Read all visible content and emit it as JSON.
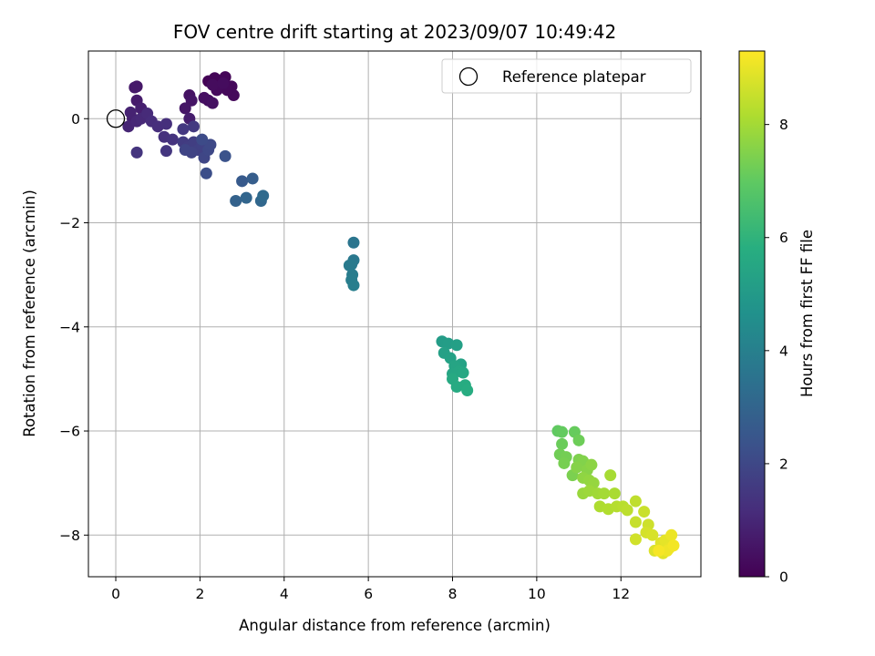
{
  "chart_data": {
    "type": "scatter",
    "title": "FOV centre drift starting at 2023/09/07 10:49:42",
    "xlabel": "Angular distance from reference (arcmin)",
    "ylabel": "Rotation from reference (arcmin)",
    "xlim": [
      -0.65,
      13.9
    ],
    "ylim": [
      -8.8,
      1.3
    ],
    "x_ticks": [
      0,
      2,
      4,
      6,
      8,
      10,
      12
    ],
    "y_ticks": [
      0,
      -2,
      -4,
      -6,
      -8
    ],
    "grid": true,
    "legend": {
      "placement": "top-right",
      "entries": [
        "Reference platepar"
      ]
    },
    "colorbar": {
      "label": "Hours from first FF file",
      "min": 0,
      "max": 9.3,
      "ticks": [
        0,
        2,
        4,
        6,
        8
      ],
      "colormap": "viridis"
    },
    "reference_point": {
      "x": 0,
      "y": 0
    },
    "series": [
      {
        "points": [
          {
            "x": 2.2,
            "y": 0.72,
            "c": 0.05
          },
          {
            "x": 2.35,
            "y": 0.78,
            "c": 0.1
          },
          {
            "x": 2.6,
            "y": 0.8,
            "c": 0.12
          },
          {
            "x": 2.5,
            "y": 0.6,
            "c": 0.15
          },
          {
            "x": 2.75,
            "y": 0.62,
            "c": 0.18
          },
          {
            "x": 2.8,
            "y": 0.45,
            "c": 0.2
          },
          {
            "x": 2.65,
            "y": 0.55,
            "c": 0.22
          },
          {
            "x": 2.4,
            "y": 0.55,
            "c": 0.25
          },
          {
            "x": 2.3,
            "y": 0.65,
            "c": 0.28
          },
          {
            "x": 2.55,
            "y": 0.68,
            "c": 0.3
          },
          {
            "x": 2.2,
            "y": 0.35,
            "c": 0.35
          },
          {
            "x": 2.1,
            "y": 0.4,
            "c": 0.38
          },
          {
            "x": 2.3,
            "y": 0.3,
            "c": 0.42
          },
          {
            "x": 1.75,
            "y": 0.45,
            "c": 0.45
          },
          {
            "x": 1.8,
            "y": 0.35,
            "c": 0.5
          },
          {
            "x": 1.65,
            "y": 0.2,
            "c": 0.55
          },
          {
            "x": 0.5,
            "y": 0.62,
            "c": 0.6
          },
          {
            "x": 0.45,
            "y": 0.6,
            "c": 0.65
          },
          {
            "x": 0.5,
            "y": 0.35,
            "c": 0.7
          },
          {
            "x": 1.75,
            "y": 0.0,
            "c": 0.75
          },
          {
            "x": 0.6,
            "y": 0.2,
            "c": 0.8
          },
          {
            "x": 0.4,
            "y": 0.0,
            "c": 0.85
          },
          {
            "x": 0.35,
            "y": 0.12,
            "c": 0.9
          },
          {
            "x": 0.3,
            "y": -0.15,
            "c": 0.95
          },
          {
            "x": 0.5,
            "y": -0.05,
            "c": 1.0
          },
          {
            "x": 0.6,
            "y": 0.0,
            "c": 1.05
          },
          {
            "x": 0.75,
            "y": 0.1,
            "c": 1.1
          },
          {
            "x": 0.85,
            "y": -0.05,
            "c": 1.15
          },
          {
            "x": 1.0,
            "y": -0.15,
            "c": 1.2
          },
          {
            "x": 1.2,
            "y": -0.1,
            "c": 1.25
          },
          {
            "x": 1.15,
            "y": -0.35,
            "c": 1.3
          },
          {
            "x": 1.35,
            "y": -0.4,
            "c": 1.35
          },
          {
            "x": 0.5,
            "y": -0.65,
            "c": 1.4
          },
          {
            "x": 1.2,
            "y": -0.62,
            "c": 1.45
          },
          {
            "x": 1.6,
            "y": -0.2,
            "c": 1.5
          },
          {
            "x": 1.85,
            "y": -0.15,
            "c": 1.55
          },
          {
            "x": 1.6,
            "y": -0.45,
            "c": 1.6
          },
          {
            "x": 1.7,
            "y": -0.55,
            "c": 1.65
          },
          {
            "x": 1.85,
            "y": -0.45,
            "c": 1.7
          },
          {
            "x": 1.95,
            "y": -0.6,
            "c": 1.75
          },
          {
            "x": 2.05,
            "y": -0.5,
            "c": 1.8
          },
          {
            "x": 1.8,
            "y": -0.65,
            "c": 1.85
          },
          {
            "x": 1.65,
            "y": -0.6,
            "c": 1.9
          },
          {
            "x": 2.1,
            "y": -0.75,
            "c": 1.95
          },
          {
            "x": 2.2,
            "y": -0.6,
            "c": 2.0
          },
          {
            "x": 2.25,
            "y": -0.5,
            "c": 2.05
          },
          {
            "x": 2.05,
            "y": -0.4,
            "c": 2.1
          },
          {
            "x": 2.15,
            "y": -1.05,
            "c": 2.2
          },
          {
            "x": 2.6,
            "y": -0.72,
            "c": 2.35
          },
          {
            "x": 3.0,
            "y": -1.2,
            "c": 2.6
          },
          {
            "x": 3.25,
            "y": -1.15,
            "c": 2.75
          },
          {
            "x": 2.85,
            "y": -1.58,
            "c": 2.9
          },
          {
            "x": 3.1,
            "y": -1.52,
            "c": 3.0
          },
          {
            "x": 3.45,
            "y": -1.58,
            "c": 3.1
          },
          {
            "x": 3.5,
            "y": -1.48,
            "c": 3.2
          },
          {
            "x": 5.65,
            "y": -2.38,
            "c": 3.6
          },
          {
            "x": 5.65,
            "y": -2.72,
            "c": 3.7
          },
          {
            "x": 5.6,
            "y": -2.8,
            "c": 3.75
          },
          {
            "x": 5.55,
            "y": -2.82,
            "c": 3.8
          },
          {
            "x": 5.62,
            "y": -3.0,
            "c": 3.85
          },
          {
            "x": 5.6,
            "y": -3.1,
            "c": 3.9
          },
          {
            "x": 5.65,
            "y": -3.2,
            "c": 3.95
          },
          {
            "x": 7.75,
            "y": -4.28,
            "c": 5.1
          },
          {
            "x": 7.9,
            "y": -4.32,
            "c": 5.15
          },
          {
            "x": 8.1,
            "y": -4.35,
            "c": 5.2
          },
          {
            "x": 7.8,
            "y": -4.5,
            "c": 5.25
          },
          {
            "x": 7.95,
            "y": -4.6,
            "c": 5.3
          },
          {
            "x": 8.2,
            "y": -4.72,
            "c": 5.35
          },
          {
            "x": 8.05,
            "y": -4.75,
            "c": 5.4
          },
          {
            "x": 8.0,
            "y": -4.9,
            "c": 5.45
          },
          {
            "x": 8.15,
            "y": -4.85,
            "c": 5.5
          },
          {
            "x": 8.25,
            "y": -4.88,
            "c": 5.55
          },
          {
            "x": 8.0,
            "y": -5.0,
            "c": 5.6
          },
          {
            "x": 8.1,
            "y": -5.15,
            "c": 5.65
          },
          {
            "x": 8.3,
            "y": -5.12,
            "c": 5.7
          },
          {
            "x": 8.35,
            "y": -5.22,
            "c": 5.75
          },
          {
            "x": 10.5,
            "y": -6.0,
            "c": 7.0
          },
          {
            "x": 10.6,
            "y": -6.02,
            "c": 7.05
          },
          {
            "x": 10.9,
            "y": -6.02,
            "c": 7.1
          },
          {
            "x": 10.6,
            "y": -6.25,
            "c": 7.15
          },
          {
            "x": 11.0,
            "y": -6.18,
            "c": 7.2
          },
          {
            "x": 10.55,
            "y": -6.45,
            "c": 7.25
          },
          {
            "x": 10.7,
            "y": -6.5,
            "c": 7.3
          },
          {
            "x": 10.65,
            "y": -6.62,
            "c": 7.35
          },
          {
            "x": 10.85,
            "y": -6.85,
            "c": 7.4
          },
          {
            "x": 11.0,
            "y": -6.55,
            "c": 7.45
          },
          {
            "x": 11.1,
            "y": -6.58,
            "c": 7.5
          },
          {
            "x": 10.95,
            "y": -6.7,
            "c": 7.55
          },
          {
            "x": 11.2,
            "y": -6.75,
            "c": 7.6
          },
          {
            "x": 11.3,
            "y": -6.65,
            "c": 7.65
          },
          {
            "x": 11.1,
            "y": -6.9,
            "c": 7.7
          },
          {
            "x": 11.25,
            "y": -6.95,
            "c": 7.75
          },
          {
            "x": 11.35,
            "y": -7.0,
            "c": 7.8
          },
          {
            "x": 11.1,
            "y": -7.2,
            "c": 7.85
          },
          {
            "x": 11.25,
            "y": -7.15,
            "c": 7.9
          },
          {
            "x": 11.45,
            "y": -7.2,
            "c": 7.95
          },
          {
            "x": 11.6,
            "y": -7.2,
            "c": 8.0
          },
          {
            "x": 11.75,
            "y": -6.85,
            "c": 8.05
          },
          {
            "x": 11.85,
            "y": -7.2,
            "c": 8.1
          },
          {
            "x": 11.5,
            "y": -7.45,
            "c": 8.15
          },
          {
            "x": 11.7,
            "y": -7.5,
            "c": 8.2
          },
          {
            "x": 11.9,
            "y": -7.45,
            "c": 8.25
          },
          {
            "x": 12.05,
            "y": -7.45,
            "c": 8.3
          },
          {
            "x": 12.15,
            "y": -7.52,
            "c": 8.35
          },
          {
            "x": 12.35,
            "y": -7.35,
            "c": 8.4
          },
          {
            "x": 12.35,
            "y": -7.75,
            "c": 8.5
          },
          {
            "x": 12.55,
            "y": -7.55,
            "c": 8.55
          },
          {
            "x": 12.65,
            "y": -7.8,
            "c": 8.6
          },
          {
            "x": 12.35,
            "y": -8.08,
            "c": 8.65
          },
          {
            "x": 12.6,
            "y": -7.95,
            "c": 8.7
          },
          {
            "x": 12.75,
            "y": -8.0,
            "c": 8.75
          },
          {
            "x": 12.8,
            "y": -8.3,
            "c": 8.8
          },
          {
            "x": 12.95,
            "y": -8.15,
            "c": 8.85
          },
          {
            "x": 13.0,
            "y": -8.35,
            "c": 8.9
          },
          {
            "x": 13.05,
            "y": -8.1,
            "c": 8.95
          },
          {
            "x": 13.15,
            "y": -8.25,
            "c": 9.0
          },
          {
            "x": 13.2,
            "y": -8.0,
            "c": 9.05
          },
          {
            "x": 13.1,
            "y": -8.3,
            "c": 9.1
          },
          {
            "x": 13.25,
            "y": -8.2,
            "c": 9.15
          },
          {
            "x": 12.9,
            "y": -8.3,
            "c": 9.2
          }
        ]
      }
    ]
  }
}
